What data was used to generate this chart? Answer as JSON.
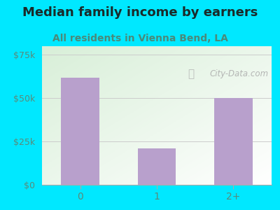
{
  "title": "Median family income by earners",
  "subtitle": "All residents in Vienna Bend, LA",
  "categories": [
    "0",
    "1",
    "2+"
  ],
  "values": [
    62000,
    21000,
    50000
  ],
  "bar_color": "#b8a0cc",
  "background_color": "#00e8ff",
  "plot_bg_topleft": "#d8efd8",
  "plot_bg_right": "#f5f5f5",
  "yticks": [
    0,
    25000,
    50000,
    75000
  ],
  "ytick_labels": [
    "$0",
    "$25k",
    "$50k",
    "$75k"
  ],
  "ylim": [
    0,
    80000
  ],
  "title_fontsize": 13,
  "subtitle_fontsize": 10,
  "tick_color": "#5a8a7a",
  "title_color": "#1a2a2a",
  "subtitle_color": "#4a8a7a",
  "watermark_text": "City-Data.com",
  "grid_color": "#cccccc",
  "spine_color": "#aaaaaa"
}
